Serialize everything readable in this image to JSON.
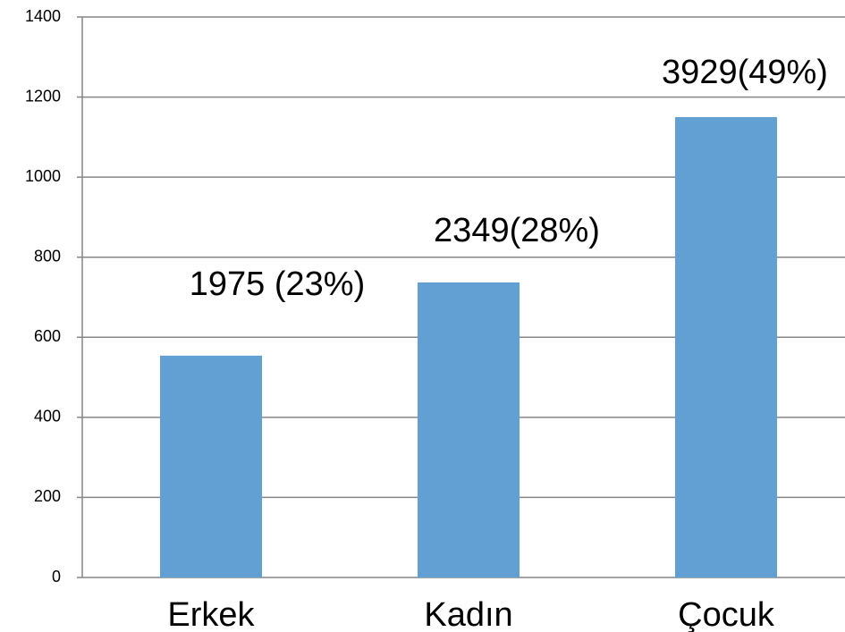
{
  "chart_data": {
    "type": "bar",
    "categories": [
      "Erkek",
      "Kadın",
      "Çocuk"
    ],
    "values": [
      554,
      737,
      1150
    ],
    "color": "#629fd3",
    "annotations": [
      "1975 (23%)",
      "2349(28%)",
      "3929(49%)"
    ],
    "ylim": [
      0,
      1400
    ],
    "yticks": [
      0,
      200,
      400,
      600,
      800,
      1000,
      1200,
      1400
    ],
    "grid": true
  }
}
